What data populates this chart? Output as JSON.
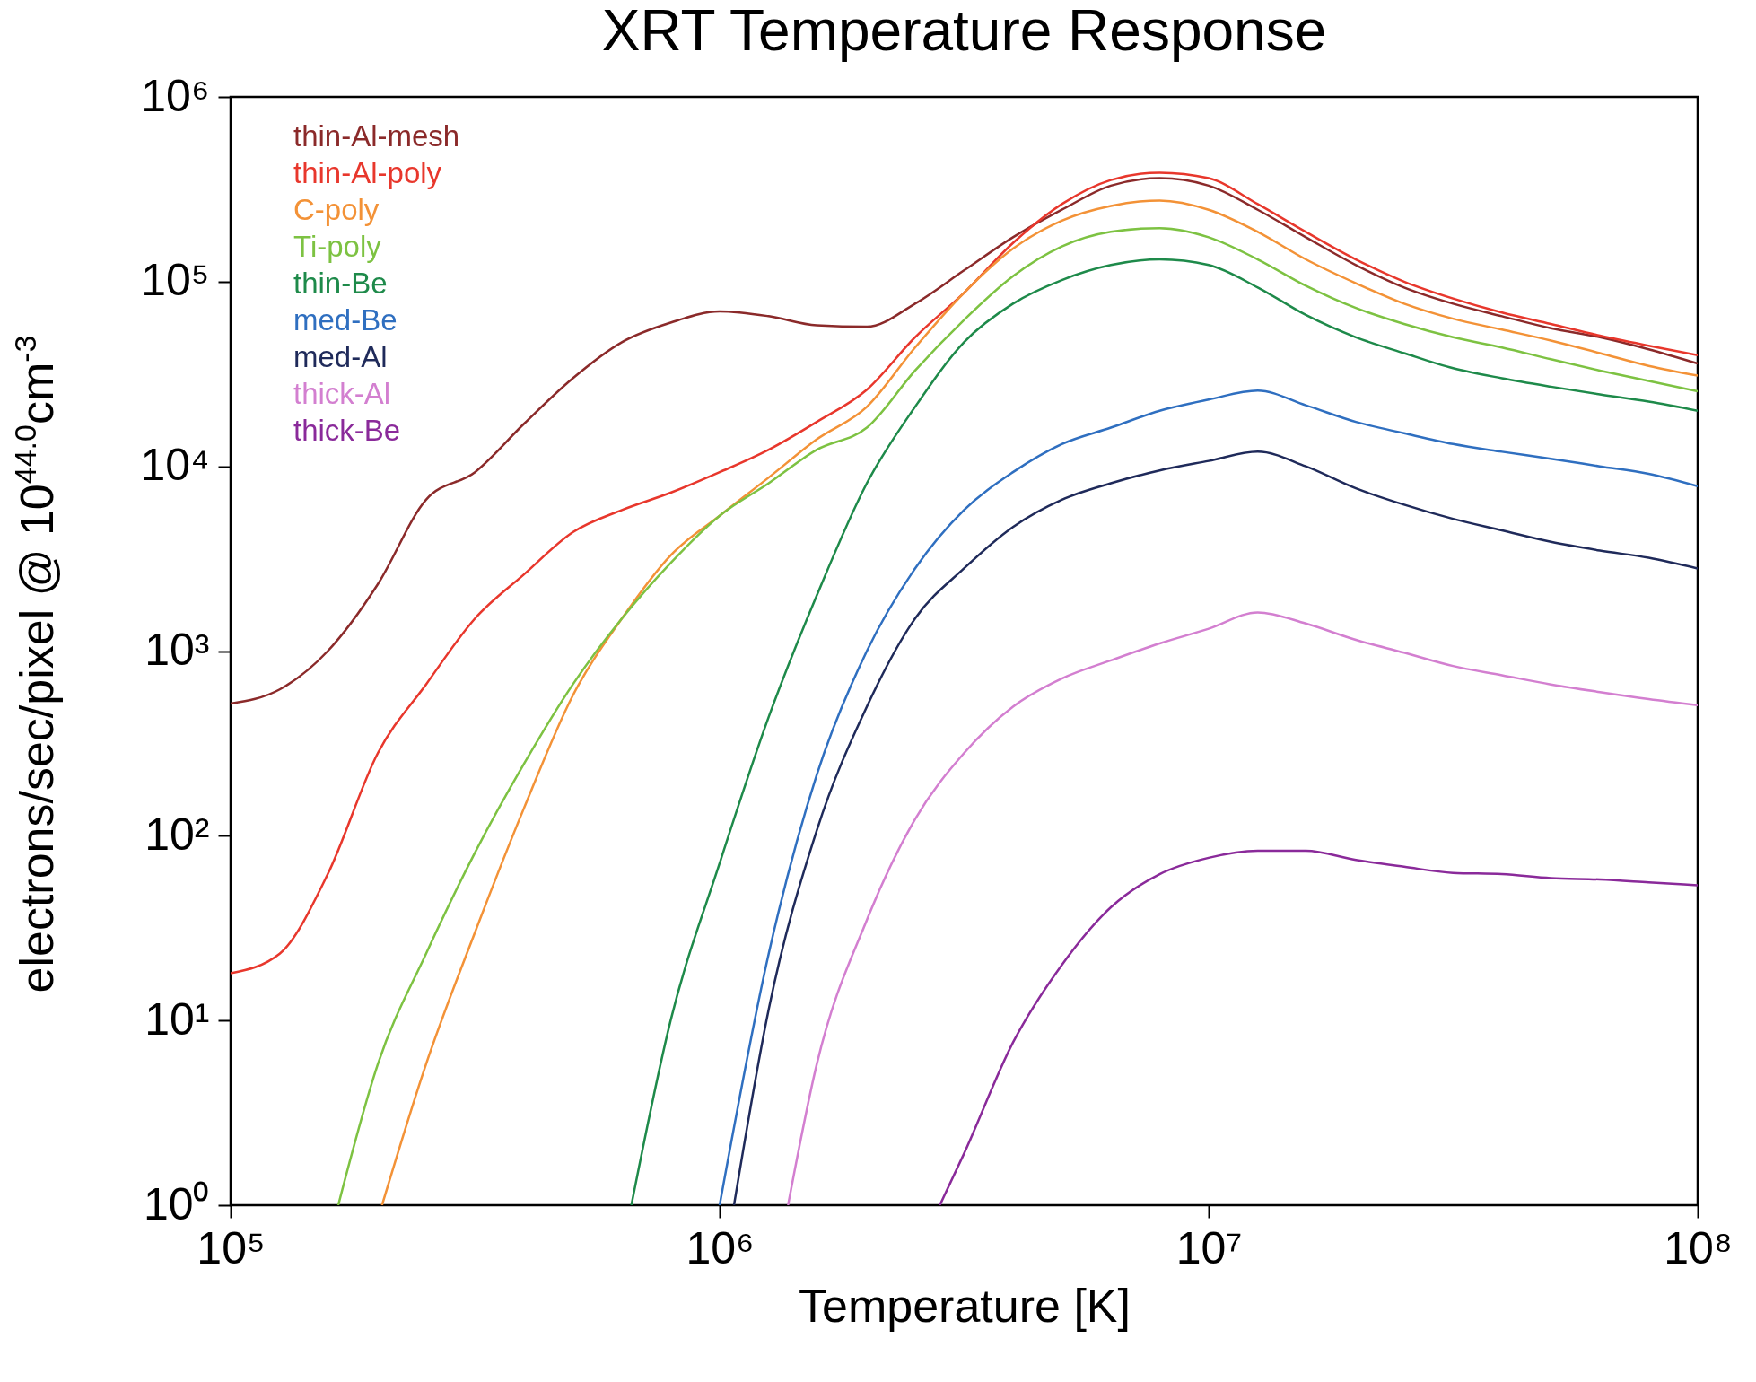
{
  "chart_data": {
    "type": "line",
    "title": "XRT Temperature Response",
    "xlabel": "Temperature [K]",
    "ylabel": "electrons/sec/pixel @ 10$^{44.0}$cm$^{-3}$",
    "log": "xy",
    "grid": false,
    "legend": "top left",
    "marker": "none",
    "line_style": "solid",
    "xlim": [
      100000.0,
      100000000.0
    ],
    "ylim": [
      1,
      1000000.0
    ],
    "xticks": [
      {
        "value": 100000.0,
        "label": "10⁵"
      },
      {
        "value": 1000000.0,
        "label": "10⁶"
      },
      {
        "value": 10000000.0,
        "label": "10⁷"
      },
      {
        "value": 100000000.0,
        "label": "10⁸"
      }
    ],
    "yticks": [
      {
        "value": 1,
        "label": "10⁰"
      },
      {
        "value": 10,
        "label": "10¹"
      },
      {
        "value": 100,
        "label": "10²"
      },
      {
        "value": 1000,
        "label": "10³"
      },
      {
        "value": 10000,
        "label": "10⁴"
      },
      {
        "value": 100000,
        "label": "10⁵"
      },
      {
        "value": 1000000,
        "label": "10⁶"
      }
    ],
    "series": [
      {
        "name": "thin-Al-mesh",
        "color": "#8b2a2a",
        "x": [
          100000.0,
          126000.0,
          158000.0,
          200000.0,
          251000.0,
          316000.0,
          398000.0,
          501000.0,
          631000.0,
          794000.0,
          1000000.0,
          1260000.0,
          1580000.0,
          2000000.0,
          2510000.0,
          3160000.0,
          3980000.0,
          5010000.0,
          6310000.0,
          7940000.0,
          10000000.0,
          12600000.0,
          15800000.0,
          20000000.0,
          25100000.0,
          31600000.0,
          39800000.0,
          50100000.0,
          63100000.0,
          79400000.0,
          100000000.0
        ],
        "values": [
          520,
          620,
          1000,
          2300,
          6600,
          9300,
          17000,
          30000,
          47000,
          60000,
          69000,
          65000,
          58000,
          57000,
          76000,
          115000,
          174000,
          245000,
          331000,
          363000,
          331000,
          245000,
          174000,
          123000,
          93000,
          76000,
          65000,
          56000,
          50000,
          43000,
          36000
        ]
      },
      {
        "name": "thin-Al-poly",
        "color": "#e8372c",
        "x": [
          100000.0,
          126000.0,
          158000.0,
          200000.0,
          251000.0,
          316000.0,
          398000.0,
          501000.0,
          631000.0,
          794000.0,
          1000000.0,
          1260000.0,
          1580000.0,
          2000000.0,
          2510000.0,
          3160000.0,
          3980000.0,
          5010000.0,
          6310000.0,
          7940000.0,
          10000000.0,
          12600000.0,
          15800000.0,
          20000000.0,
          25100000.0,
          31600000.0,
          39800000.0,
          50100000.0,
          63100000.0,
          79400000.0,
          100000000.0
        ],
        "values": [
          18,
          23,
          62,
          280,
          660,
          1500,
          2600,
          4400,
          5800,
          7200,
          9300,
          12300,
          17400,
          26000,
          50000,
          87000,
          162000,
          263000,
          355000,
          389000,
          363000,
          263000,
          186000,
          132000,
          100000,
          81000,
          68000,
          59000,
          51000,
          45000,
          40000
        ]
      },
      {
        "name": "C-poly",
        "color": "#f39237",
        "x": [
          204000.0,
          251000.0,
          316000.0,
          398000.0,
          501000.0,
          631000.0,
          794000.0,
          1000000.0,
          1260000.0,
          1580000.0,
          2000000.0,
          2510000.0,
          3160000.0,
          3980000.0,
          5010000.0,
          6310000.0,
          7940000.0,
          10000000.0,
          12600000.0,
          15800000.0,
          20000000.0,
          25100000.0,
          31600000.0,
          39800000.0,
          50100000.0,
          63100000.0,
          79400000.0,
          100000000.0
        ],
        "values": [
          1,
          5.8,
          30,
          141,
          575,
          1500,
          3300,
          5400,
          8700,
          14000,
          21000,
          44000,
          87000,
          151000,
          214000,
          257000,
          275000,
          245000,
          186000,
          132000,
          98000,
          76000,
          63000,
          55000,
          48000,
          41000,
          35000,
          31000
        ]
      },
      {
        "name": "Ti-poly",
        "color": "#7dc242",
        "x": [
          166000.0,
          200000.0,
          251000.0,
          316000.0,
          398000.0,
          501000.0,
          631000.0,
          794000.0,
          1000000.0,
          1260000.0,
          1580000.0,
          2000000.0,
          2510000.0,
          3160000.0,
          3980000.0,
          5010000.0,
          6310000.0,
          7940000.0,
          10000000.0,
          12600000.0,
          15800000.0,
          20000000.0,
          25100000.0,
          31600000.0,
          39800000.0,
          50100000.0,
          63100000.0,
          79400000.0,
          100000000.0
        ],
        "values": [
          1,
          5.8,
          23,
          81,
          245,
          660,
          1500,
          3000,
          5400,
          8100,
          12300,
          16200,
          33000,
          62000,
          107000,
          155000,
          186000,
          195000,
          174000,
          132000,
          95000,
          72000,
          59000,
          50000,
          44000,
          38000,
          33000,
          29000,
          25500
        ]
      },
      {
        "name": "thin-Be",
        "color": "#1e8a4a",
        "x": [
          660000.0,
          794000.0,
          1000000.0,
          1260000.0,
          1580000.0,
          2000000.0,
          2510000.0,
          3160000.0,
          3980000.0,
          5010000.0,
          6310000.0,
          7940000.0,
          10000000.0,
          12600000.0,
          15800000.0,
          20000000.0,
          25100000.0,
          31600000.0,
          39800000.0,
          50100000.0,
          63100000.0,
          79400000.0,
          100000000.0
        ],
        "values": [
          1,
          10,
          71,
          440,
          2000,
          8100,
          21000,
          47000,
          76000,
          102000,
          123000,
          132000,
          123000,
          93000,
          66000,
          50000,
          41000,
          34000,
          30000,
          27000,
          24500,
          22400,
          20000
        ]
      },
      {
        "name": "med-Be",
        "color": "#2f6fc0",
        "x": [
          1000000.0,
          1260000.0,
          1580000.0,
          2000000.0,
          2510000.0,
          3160000.0,
          3980000.0,
          5010000.0,
          6310000.0,
          7940000.0,
          10000000.0,
          12600000.0,
          15800000.0,
          20000000.0,
          25100000.0,
          31600000.0,
          39800000.0,
          50100000.0,
          63100000.0,
          79400000.0,
          100000000.0
        ],
        "values": [
          1,
          23,
          214,
          1000,
          2800,
          5800,
          9300,
          13200,
          16200,
          20000,
          23000,
          25700,
          21400,
          17400,
          15100,
          13200,
          12000,
          11000,
          10000,
          9100,
          7800
        ]
      },
      {
        "name": "med-Al",
        "color": "#1f2a5a",
        "x": [
          1070000.0,
          1260000.0,
          1580000.0,
          2000000.0,
          2510000.0,
          3160000.0,
          3980000.0,
          5010000.0,
          6310000.0,
          7940000.0,
          10000000.0,
          12600000.0,
          15800000.0,
          20000000.0,
          25100000.0,
          31600000.0,
          39800000.0,
          50100000.0,
          63100000.0,
          79400000.0,
          100000000.0
        ],
        "values": [
          1,
          11.5,
          107,
          500,
          1500,
          2800,
          4700,
          6600,
          8100,
          9500,
          10700,
          12000,
          10000,
          7600,
          6200,
          5200,
          4500,
          3900,
          3500,
          3200,
          2800
        ]
      },
      {
        "name": "thick-Al",
        "color": "#d37fd0",
        "x": [
          1380000.0,
          1580000.0,
          2000000.0,
          2510000.0,
          3160000.0,
          3980000.0,
          5010000.0,
          6310000.0,
          7940000.0,
          10000000.0,
          12600000.0,
          15800000.0,
          20000000.0,
          25100000.0,
          31600000.0,
          39800000.0,
          50100000.0,
          63100000.0,
          79400000.0,
          100000000.0
        ],
        "values": [
          1,
          5.8,
          35,
          123,
          280,
          500,
          710,
          890,
          1100,
          1320,
          1620,
          1410,
          1150,
          980,
          830,
          740,
          660,
          600,
          550,
          510
        ]
      },
      {
        "name": "thick-Be",
        "color": "#8a2a9a",
        "x": [
          2820000.0,
          3160000.0,
          3980000.0,
          5010000.0,
          6310000.0,
          7940000.0,
          10000000.0,
          12600000.0,
          15800000.0,
          20000000.0,
          25100000.0,
          31600000.0,
          39800000.0,
          50100000.0,
          63100000.0,
          79400000.0,
          100000000.0
        ],
        "values": [
          1,
          1.9,
          7.6,
          20,
          41,
          62,
          76,
          83,
          83,
          74,
          68,
          63,
          62,
          59,
          58,
          56,
          54
        ]
      }
    ]
  }
}
